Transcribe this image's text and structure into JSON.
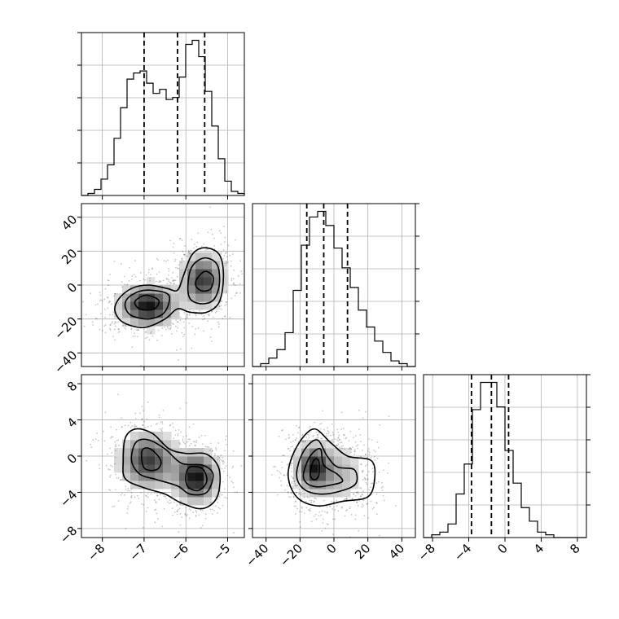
{
  "chart_data": {
    "type": "corner",
    "parameters": [
      {
        "ticks": [
          -8,
          -7,
          -6,
          -5
        ],
        "range": [
          -8.5,
          -4.6
        ],
        "quantiles": [
          -7.0,
          -6.2,
          -5.55
        ],
        "hist_counts": [
          0,
          1,
          3,
          8,
          15,
          28,
          43,
          57,
          60,
          61,
          55,
          50,
          52,
          47,
          48,
          58,
          74,
          76,
          68,
          51,
          34,
          18,
          7,
          2,
          1
        ],
        "modes": [
          {
            "mean": -6.9,
            "sd": 0.35,
            "weight": 0.55
          },
          {
            "mean": -5.6,
            "sd": 0.3,
            "weight": 0.45
          }
        ]
      },
      {
        "ticks": [
          -40,
          -20,
          0,
          20,
          40
        ],
        "range": [
          -48,
          48
        ],
        "quantiles": [
          -16,
          -6,
          8
        ],
        "hist_counts": [
          0,
          1,
          3,
          6,
          12,
          27,
          43,
          53,
          55,
          50,
          42,
          35,
          28,
          20,
          14,
          9,
          5,
          2,
          1,
          0
        ],
        "modes": [
          {
            "mean": -12,
            "sd": 5,
            "weight": 0.55
          },
          {
            "mean": 4,
            "sd": 10,
            "weight": 0.45
          }
        ]
      },
      {
        "ticks": [
          -8,
          -4,
          0,
          4,
          8
        ],
        "range": [
          -9,
          9
        ],
        "quantiles": [
          -3.7,
          -1.5,
          0.4
        ],
        "hist_counts": [
          0,
          1,
          2,
          5,
          16,
          27,
          47,
          57,
          57,
          48,
          32,
          20,
          11,
          6,
          2,
          1,
          0,
          0,
          0,
          0
        ],
        "modes": [
          {
            "mean": -1.8,
            "sd": 1.2,
            "weight": 0.55
          },
          {
            "mean": -1.5,
            "sd": 1.8,
            "weight": 0.45
          }
        ]
      }
    ],
    "pairs": [
      {
        "x_param": 0,
        "y_param": 1,
        "modes": [
          {
            "mx": -6.9,
            "my": -12,
            "sx": 0.4,
            "sy": 7,
            "weight": 0.55
          },
          {
            "mx": -5.6,
            "my": 3,
            "sx": 0.3,
            "sy": 9,
            "weight": 0.45
          }
        ],
        "contours": [
          [
            [
              -7.6,
              -8
            ],
            [
              -7.3,
              -2
            ],
            [
              -6.9,
              0
            ],
            [
              -6.45,
              -2
            ],
            [
              -6.2,
              -3
            ],
            [
              -6.05,
              6
            ],
            [
              -5.85,
              18
            ],
            [
              -5.55,
              22
            ],
            [
              -5.2,
              18
            ],
            [
              -5.1,
              5
            ],
            [
              -5.2,
              -10
            ],
            [
              -5.5,
              -16
            ],
            [
              -5.9,
              -16
            ],
            [
              -6.2,
              -14
            ],
            [
              -6.5,
              -20
            ],
            [
              -7.0,
              -25
            ],
            [
              -7.5,
              -22
            ],
            [
              -7.7,
              -15
            ]
          ],
          [
            [
              -7.4,
              -8
            ],
            [
              -7.15,
              -4
            ],
            [
              -6.85,
              -3
            ],
            [
              -6.45,
              -5
            ],
            [
              -6.4,
              -10
            ],
            [
              -6.55,
              -17
            ],
            [
              -6.9,
              -20
            ],
            [
              -7.3,
              -18
            ],
            [
              -7.45,
              -13
            ]
          ],
          [
            [
              -5.95,
              0
            ],
            [
              -5.85,
              11
            ],
            [
              -5.55,
              16
            ],
            [
              -5.25,
              12
            ],
            [
              -5.2,
              0
            ],
            [
              -5.35,
              -9
            ],
            [
              -5.65,
              -11
            ],
            [
              -5.9,
              -8
            ]
          ],
          [
            [
              -7.2,
              -9
            ],
            [
              -6.95,
              -6
            ],
            [
              -6.65,
              -9
            ],
            [
              -6.75,
              -14
            ],
            [
              -7.05,
              -14.5
            ],
            [
              -7.2,
              -12
            ]
          ],
          [
            [
              -5.75,
              3
            ],
            [
              -5.55,
              8
            ],
            [
              -5.35,
              5
            ],
            [
              -5.4,
              -2
            ],
            [
              -5.6,
              -3.5
            ],
            [
              -5.75,
              -1
            ]
          ]
        ]
      },
      {
        "x_param": 0,
        "y_param": 2,
        "modes": [
          {
            "mx": -6.9,
            "my": -0.5,
            "sx": 0.4,
            "sy": 1.8,
            "weight": 0.55
          },
          {
            "mx": -5.75,
            "my": -2.3,
            "sx": 0.3,
            "sy": 1.6,
            "weight": 0.45
          }
        ],
        "contours": [
          [
            [
              -7.5,
              -0.5
            ],
            [
              -7.45,
              2
            ],
            [
              -7.2,
              3
            ],
            [
              -6.8,
              2.5
            ],
            [
              -6.4,
              0.8
            ],
            [
              -6.0,
              0.3
            ],
            [
              -5.5,
              0.2
            ],
            [
              -5.2,
              -1.5
            ],
            [
              -5.25,
              -4.5
            ],
            [
              -5.6,
              -5.8
            ],
            [
              -6.1,
              -5.2
            ],
            [
              -6.5,
              -4.2
            ],
            [
              -7.0,
              -3.5
            ],
            [
              -7.45,
              -2.5
            ]
          ],
          [
            [
              -7.3,
              -0.5
            ],
            [
              -7.2,
              1.5
            ],
            [
              -6.9,
              1.8
            ],
            [
              -6.5,
              0.8
            ],
            [
              -6.1,
              -0.8
            ],
            [
              -5.6,
              -1.0
            ],
            [
              -5.35,
              -2
            ],
            [
              -5.5,
              -4
            ],
            [
              -5.9,
              -4.2
            ],
            [
              -6.2,
              -3.3
            ],
            [
              -6.7,
              -2.6
            ],
            [
              -7.1,
              -2.0
            ]
          ],
          [
            [
              -7.0,
              -1.3
            ],
            [
              -7.05,
              0.6
            ],
            [
              -6.85,
              0.8
            ],
            [
              -6.6,
              -0.5
            ],
            [
              -6.7,
              -1.5
            ]
          ],
          [
            [
              -6.0,
              -2.2
            ],
            [
              -5.9,
              -1.2
            ],
            [
              -5.6,
              -1.4
            ],
            [
              -5.5,
              -2.8
            ],
            [
              -5.7,
              -3.8
            ],
            [
              -5.95,
              -3.4
            ]
          ]
        ]
      },
      {
        "x_param": 1,
        "y_param": 2,
        "modes": [
          {
            "mx": -12,
            "my": -1.2,
            "sx": 6,
            "sy": 1.5,
            "weight": 0.55
          },
          {
            "mx": 2,
            "my": -2.0,
            "sx": 10,
            "sy": 2.0,
            "weight": 0.45
          }
        ],
        "contours": [
          [
            [
              -27,
              -2
            ],
            [
              -22,
              1
            ],
            [
              -12,
              3
            ],
            [
              -2,
              1.5
            ],
            [
              8,
              0
            ],
            [
              22,
              -0.5
            ],
            [
              24,
              -2.5
            ],
            [
              20,
              -4.5
            ],
            [
              5,
              -5
            ],
            [
              -10,
              -5.5
            ],
            [
              -22,
              -4.5
            ]
          ],
          [
            [
              -22,
              -2
            ],
            [
              -18,
              0.5
            ],
            [
              -10,
              1.8
            ],
            [
              -4,
              0
            ],
            [
              2,
              -1.2
            ],
            [
              12,
              -1.5
            ],
            [
              13,
              -3
            ],
            [
              5,
              -3.8
            ],
            [
              -8,
              -4.2
            ],
            [
              -18,
              -3.6
            ]
          ],
          [
            [
              -18,
              -2
            ],
            [
              -14,
              0
            ],
            [
              -8,
              0.8
            ],
            [
              -6,
              -1
            ],
            [
              2,
              -2.0
            ],
            [
              5,
              -2.8
            ],
            [
              -2,
              -3.2
            ],
            [
              -10,
              -3.4
            ],
            [
              -16,
              -3.0
            ]
          ],
          [
            [
              -14,
              -2
            ],
            [
              -12,
              -0.5
            ],
            [
              -9,
              -0.5
            ],
            [
              -9,
              -2.2
            ],
            [
              -12,
              -2.6
            ]
          ]
        ]
      }
    ]
  }
}
